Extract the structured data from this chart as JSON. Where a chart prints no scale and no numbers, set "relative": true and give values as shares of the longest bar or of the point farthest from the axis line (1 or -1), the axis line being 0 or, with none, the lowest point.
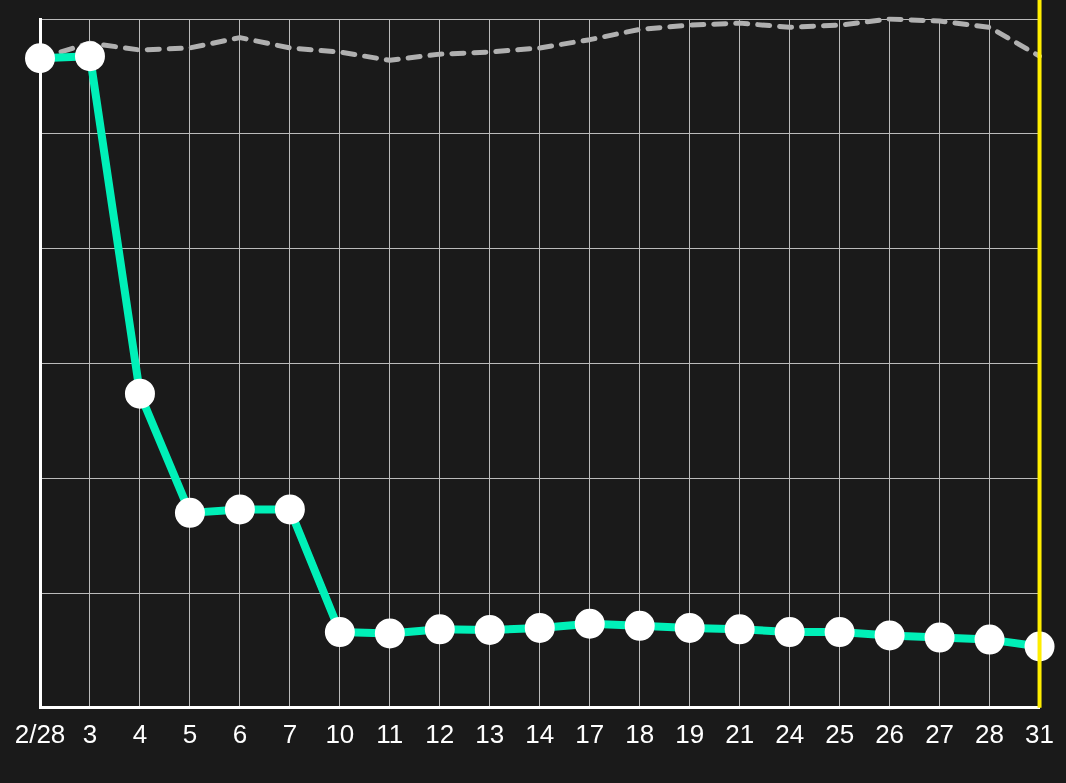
{
  "chart_data": {
    "type": "line",
    "relative": true,
    "grid": true,
    "marker": "circle",
    "legend": false,
    "categories": [
      "2/28",
      "3",
      "4",
      "5",
      "6",
      "7",
      "10",
      "11",
      "12",
      "13",
      "14",
      "17",
      "18",
      "19",
      "21",
      "24",
      "25",
      "26",
      "27",
      "28",
      "31"
    ],
    "series": [
      {
        "color": "#00f0b8",
        "line_style": "solid",
        "values": [
          0.943,
          0.946,
          0.456,
          0.283,
          0.288,
          0.288,
          0.11,
          0.108,
          0.114,
          0.113,
          0.116,
          0.122,
          0.119,
          0.116,
          0.114,
          0.11,
          0.11,
          0.105,
          0.102,
          0.099,
          0.089
        ]
      },
      {
        "color": "#b0b0b0",
        "line_style": "dashed",
        "marker": "none",
        "values": [
          0.943,
          0.965,
          0.955,
          0.958,
          0.973,
          0.958,
          0.952,
          0.94,
          0.949,
          0.952,
          0.958,
          0.97,
          0.985,
          0.991,
          0.994,
          0.988,
          0.991,
          1,
          0.997,
          0.988,
          0.946
        ]
      }
    ],
    "ref_lines": [
      {
        "axis": "x",
        "value": "31",
        "color": "#ffee00"
      }
    ]
  }
}
